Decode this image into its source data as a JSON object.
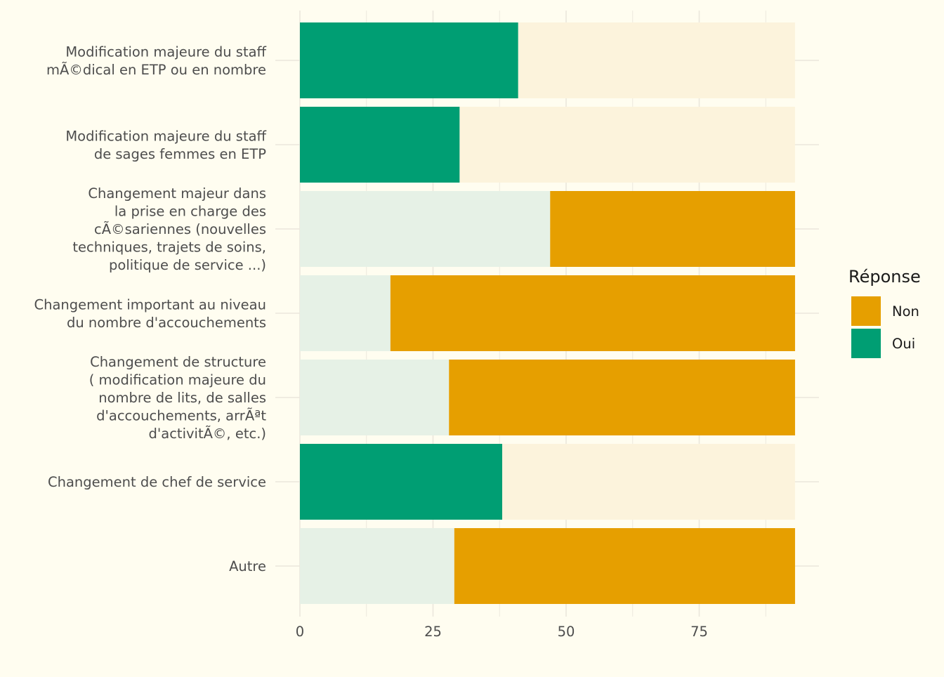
{
  "chart_data": {
    "type": "bar",
    "orientation": "horizontal",
    "stacking": "stacked",
    "categories": [
      "Modification majeure du staff\nmÃ©dical en ETP ou en nombre",
      "Modification majeure du staff\nde sages femmes en ETP",
      "Changement majeur dans\nla prise en charge des\ncÃ©sariennes (nouvelles\ntechniques, trajets de soins,\npolitique de service ...)",
      "Changement important au niveau\ndu nombre d'accouchements",
      "Changement de structure\n( modification majeure du\nnombre de lits, de salles\nd'accouchements, arrÃªt\nd'activitÃ©, etc.)",
      "Changement de chef de service",
      "Autre"
    ],
    "series": [
      {
        "name": "Oui",
        "color": "#009E73",
        "values": [
          41,
          30,
          47,
          17,
          28,
          38,
          29
        ]
      },
      {
        "name": "Non",
        "color": "#E69F00",
        "values": [
          52,
          63,
          46,
          76,
          65,
          55,
          64
        ]
      }
    ],
    "highlight": [
      "Oui",
      "Oui",
      "Non",
      "Non",
      "Non",
      "Oui",
      "Non"
    ],
    "xlim": [
      0,
      98
    ],
    "xticks": [
      0,
      25,
      50,
      75
    ],
    "xlabel": "",
    "ylabel": "",
    "title": "",
    "legend": {
      "title": "Réponse",
      "position": "right",
      "entries": [
        "Non",
        "Oui"
      ]
    },
    "faded_colors": {
      "Oui": "#e6f1e6",
      "Non": "#fcf3dc"
    },
    "grid": true,
    "grid_color": "#ebe7dc",
    "background": "#fffdf0",
    "text_color": "#4d4d4d"
  }
}
